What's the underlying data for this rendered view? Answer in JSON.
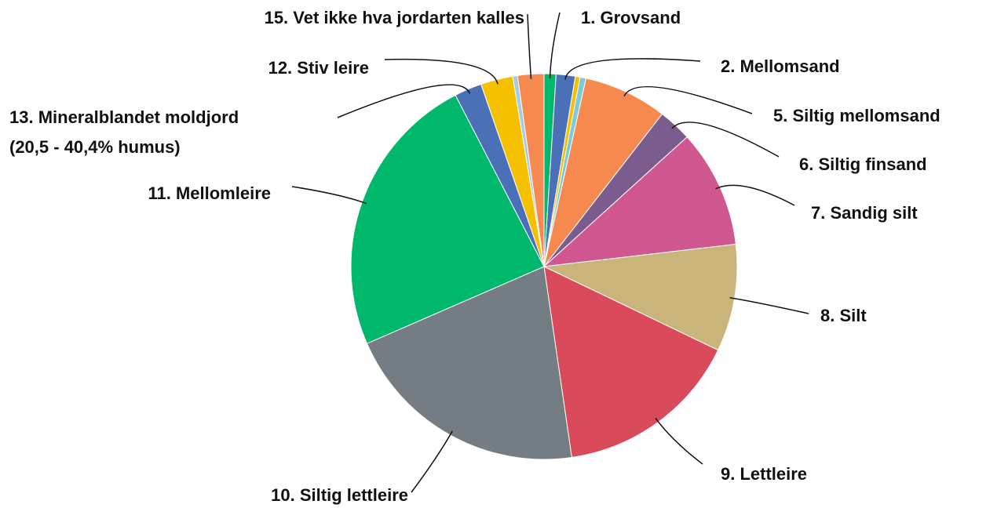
{
  "chart_data": {
    "type": "pie",
    "categories": [
      "1. Grovsand",
      "2. Mellomsand",
      null,
      null,
      "5. Siltig mellomsand",
      "6. Siltig finsand",
      "7. Sandig silt",
      "8. Silt",
      "9. Lettleire",
      "10. Siltig lettleire",
      "11. Mellomleire",
      "13. Mineralblandet moldjord\n(20,5 - 40,4% humus)",
      "12. Stiv leire",
      null,
      "15. Vet ikke hva jordarten kalles"
    ],
    "values": [
      1,
      1.6,
      0.4,
      0.5,
      7,
      2.8,
      9.9,
      9,
      15.6,
      20.8,
      24,
      2.3,
      2.7,
      0.4,
      2.2
    ],
    "colors": [
      "#00b86b",
      "#4a70b8",
      "#f5c000",
      "#7ec8d8",
      "#f5894f",
      "#7b5c8e",
      "#d0578f",
      "#c9b47a",
      "#d94a5a",
      "#757d84",
      "#00b86b",
      "#4a70b8",
      "#f5c000",
      "#a7cbe0",
      "#f5894f"
    ]
  }
}
